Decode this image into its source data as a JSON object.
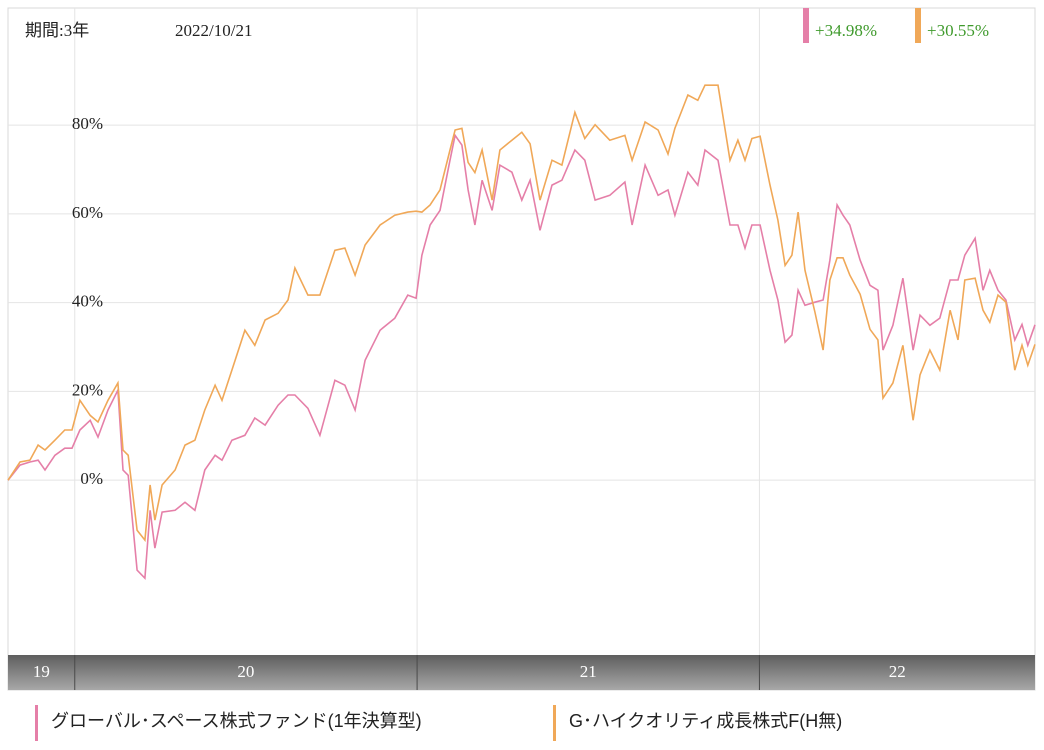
{
  "chart_data": {
    "type": "line",
    "period_label": "期間:3年",
    "date_label": "2022/10/21",
    "x": [
      2019.805,
      2019.84,
      2019.869,
      2019.893,
      2019.913,
      2019.942,
      2019.971,
      2019.992,
      2020.015,
      2020.045,
      2020.068,
      2020.097,
      2020.126,
      2020.141,
      2020.156,
      2020.182,
      2020.205,
      2020.22,
      2020.234,
      2020.255,
      2020.293,
      2020.322,
      2020.351,
      2020.38,
      2020.41,
      2020.43,
      2020.459,
      2020.497,
      2020.526,
      2020.556,
      2020.594,
      2020.623,
      2020.643,
      2020.681,
      2020.716,
      2020.76,
      2020.789,
      2020.819,
      2020.848,
      2020.892,
      2020.935,
      2020.973,
      2020.997,
      2021.014,
      2021.038,
      2021.067,
      2021.096,
      2021.111,
      2021.131,
      2021.149,
      2021.169,
      2021.19,
      2021.219,
      2021.242,
      2021.277,
      2021.306,
      2021.33,
      2021.359,
      2021.394,
      2021.423,
      2021.461,
      2021.49,
      2021.52,
      2021.563,
      2021.607,
      2021.628,
      2021.666,
      2021.704,
      2021.733,
      2021.753,
      2021.791,
      2021.82,
      2021.841,
      2021.879,
      2021.914,
      2021.937,
      2021.958,
      2021.978,
      2022.002,
      2022.031,
      2022.054,
      2022.075,
      2022.095,
      2022.113,
      2022.133,
      2022.162,
      2022.186,
      2022.206,
      2022.227,
      2022.244,
      2022.264,
      2022.294,
      2022.323,
      2022.346,
      2022.361,
      2022.39,
      2022.419,
      2022.449,
      2022.469,
      2022.498,
      2022.527,
      2022.557,
      2022.58,
      2022.6,
      2022.63,
      2022.653,
      2022.673,
      2022.697,
      2022.72,
      2022.746,
      2022.767,
      2022.784,
      2022.805
    ],
    "series": [
      {
        "name": "グローバル･スペース株式ファンド(1年決算型)",
        "color": "#e57fa8",
        "return_label": "+34.98%",
        "values": [
          0,
          3.4,
          4.1,
          4.5,
          2.3,
          5.6,
          7.2,
          7.2,
          11.3,
          13.5,
          9.7,
          15.8,
          20.3,
          2.3,
          1.1,
          -20.3,
          -22.1,
          -6.8,
          -15.3,
          -7.2,
          -6.8,
          -5.0,
          -6.8,
          2.3,
          5.6,
          4.5,
          9.0,
          10.1,
          14.0,
          12.4,
          16.9,
          19.2,
          19.2,
          16.2,
          10.1,
          22.5,
          21.4,
          15.8,
          27.0,
          33.8,
          36.5,
          41.7,
          41.0,
          50.7,
          57.5,
          60.8,
          72.1,
          77.7,
          75.5,
          65.4,
          57.5,
          67.6,
          60.8,
          71.0,
          69.4,
          63.1,
          67.6,
          56.3,
          66.5,
          67.6,
          74.4,
          72.1,
          63.1,
          64.2,
          67.2,
          57.5,
          71.0,
          64.2,
          65.4,
          59.7,
          69.4,
          66.5,
          74.4,
          72.1,
          57.5,
          57.5,
          52.3,
          57.5,
          57.5,
          47.3,
          40.6,
          31.1,
          32.7,
          42.8,
          39.4,
          40.1,
          40.6,
          49.6,
          62.0,
          59.7,
          57.5,
          49.6,
          43.9,
          42.8,
          29.3,
          34.9,
          45.5,
          29.3,
          37.2,
          34.9,
          36.5,
          45.1,
          45.1,
          50.7,
          54.5,
          42.8,
          47.3,
          42.8,
          40.6,
          31.6,
          35.1,
          30.4,
          35.0
        ]
      },
      {
        "name": "G･ハイクオリティ成長株式F(H無)",
        "color": "#f0a858",
        "return_label": "+30.55%",
        "values": [
          0,
          4.1,
          4.5,
          7.9,
          6.8,
          9.0,
          11.3,
          11.3,
          18.0,
          14.6,
          13.1,
          18.0,
          21.9,
          6.8,
          5.6,
          -11.3,
          -13.5,
          -1.1,
          -9.0,
          -1.1,
          2.3,
          7.9,
          9.0,
          15.8,
          21.4,
          18.0,
          24.8,
          33.8,
          30.4,
          36.1,
          37.6,
          40.6,
          47.8,
          41.7,
          41.7,
          51.8,
          52.3,
          46.2,
          53.0,
          57.5,
          59.7,
          60.4,
          60.6,
          60.4,
          62.0,
          65.4,
          74.4,
          78.9,
          79.3,
          71.6,
          69.3,
          74.4,
          63.1,
          74.4,
          76.6,
          78.4,
          75.8,
          63.1,
          72.1,
          71.0,
          82.9,
          77.0,
          80.1,
          76.6,
          77.7,
          72.1,
          80.7,
          78.9,
          73.5,
          79.3,
          86.8,
          85.6,
          89.0,
          89.0,
          72.1,
          76.6,
          72.1,
          77.0,
          77.5,
          66.5,
          58.6,
          48.4,
          50.7,
          60.4,
          47.3,
          37.9,
          29.3,
          45.1,
          50.1,
          50.1,
          46.2,
          41.9,
          34.0,
          31.6,
          18.5,
          21.9,
          30.4,
          13.5,
          23.7,
          29.3,
          24.8,
          38.3,
          31.6,
          45.1,
          45.5,
          38.3,
          35.6,
          41.7,
          40.1,
          24.8,
          30.4,
          25.9,
          30.6
        ]
      }
    ],
    "xlim": [
      2019.805,
      2022.805
    ],
    "year_bands": [
      {
        "value": 2019,
        "label": "19"
      },
      {
        "value": 2020,
        "label": "20"
      },
      {
        "value": 2021,
        "label": "21"
      },
      {
        "value": 2022,
        "label": "22"
      }
    ],
    "ylim": [
      -39.4,
      106.4
    ],
    "yticks": [
      {
        "value": 0,
        "label": "0%"
      },
      {
        "value": 20,
        "label": "20%"
      },
      {
        "value": 40,
        "label": "40%"
      },
      {
        "value": 60,
        "label": "60%"
      },
      {
        "value": 80,
        "label": "80%"
      }
    ],
    "grid": true
  }
}
